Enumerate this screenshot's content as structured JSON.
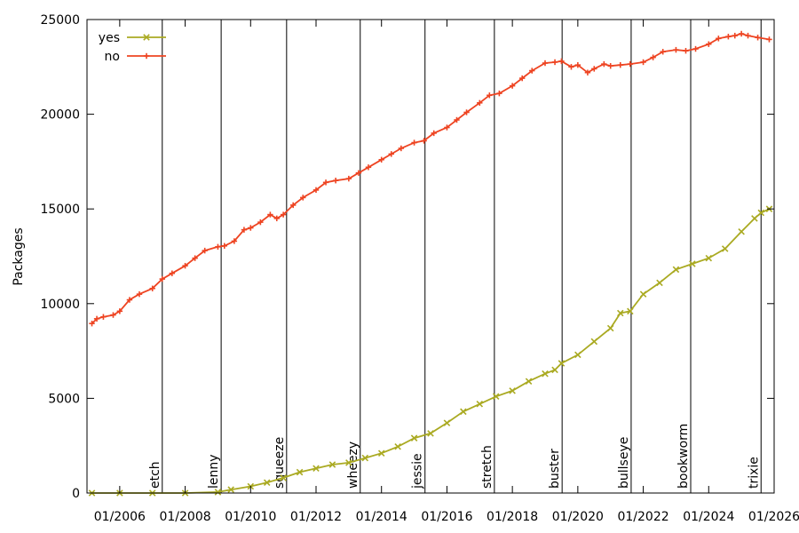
{
  "chart_data": {
    "type": "line",
    "title": "",
    "xlabel": "",
    "ylabel": "Packages",
    "xlim": [
      2005.0,
      2026.0
    ],
    "ylim": [
      0,
      25000
    ],
    "y_ticks": [
      0,
      5000,
      10000,
      15000,
      20000,
      25000
    ],
    "x_ticks": [
      {
        "value": 2006,
        "label": "01/2006"
      },
      {
        "value": 2008,
        "label": "01/2008"
      },
      {
        "value": 2010,
        "label": "01/2010"
      },
      {
        "value": 2012,
        "label": "01/2012"
      },
      {
        "value": 2014,
        "label": "01/2014"
      },
      {
        "value": 2016,
        "label": "01/2016"
      },
      {
        "value": 2018,
        "label": "01/2018"
      },
      {
        "value": 2020,
        "label": "01/2020"
      },
      {
        "value": 2022,
        "label": "01/2022"
      },
      {
        "value": 2024,
        "label": "01/2024"
      },
      {
        "value": 2026,
        "label": "01/2026"
      }
    ],
    "grid": false,
    "legend_position": "top-left",
    "releases": [
      {
        "name": "etch",
        "x": 2007.3
      },
      {
        "name": "lenny",
        "x": 2009.1
      },
      {
        "name": "squeeze",
        "x": 2011.1
      },
      {
        "name": "wheezy",
        "x": 2013.35
      },
      {
        "name": "jessie",
        "x": 2015.33
      },
      {
        "name": "stretch",
        "x": 2017.45
      },
      {
        "name": "buster",
        "x": 2019.52
      },
      {
        "name": "bullseye",
        "x": 2021.63
      },
      {
        "name": "bookworm",
        "x": 2023.45
      },
      {
        "name": "trixie",
        "x": 2025.6
      }
    ],
    "series": [
      {
        "name": "yes",
        "color": "#aaaa22",
        "marker": "x",
        "x": [
          2005.15,
          2006.0,
          2007.0,
          2008.0,
          2009.0,
          2009.4,
          2010.0,
          2010.5,
          2011.0,
          2011.5,
          2012.0,
          2012.5,
          2013.0,
          2013.5,
          2014.0,
          2014.5,
          2015.0,
          2015.5,
          2016.0,
          2016.5,
          2017.0,
          2017.5,
          2018.0,
          2018.5,
          2019.0,
          2019.3,
          2019.5,
          2020.0,
          2020.5,
          2021.0,
          2021.3,
          2021.6,
          2022.0,
          2022.5,
          2023.0,
          2023.5,
          2024.0,
          2024.5,
          2025.0,
          2025.4,
          2025.6,
          2025.85
        ],
        "y": [
          0,
          0,
          0,
          0,
          50,
          180,
          350,
          550,
          800,
          1100,
          1300,
          1500,
          1600,
          1850,
          2100,
          2450,
          2900,
          3150,
          3700,
          4300,
          4700,
          5100,
          5400,
          5900,
          6300,
          6500,
          6850,
          7300,
          8000,
          8700,
          9500,
          9600,
          10500,
          11100,
          11800,
          12100,
          12400,
          12900,
          13800,
          14500,
          14800,
          15000
        ]
      },
      {
        "name": "no",
        "color": "#ee4422",
        "marker": "+",
        "x": [
          2005.15,
          2005.3,
          2005.5,
          2005.8,
          2006.0,
          2006.3,
          2006.6,
          2007.0,
          2007.3,
          2007.6,
          2008.0,
          2008.3,
          2008.6,
          2009.0,
          2009.2,
          2009.5,
          2009.8,
          2010.0,
          2010.3,
          2010.6,
          2010.8,
          2011.0,
          2011.3,
          2011.6,
          2012.0,
          2012.3,
          2012.6,
          2013.0,
          2013.3,
          2013.6,
          2014.0,
          2014.3,
          2014.6,
          2015.0,
          2015.3,
          2015.6,
          2016.0,
          2016.3,
          2016.6,
          2017.0,
          2017.3,
          2017.6,
          2018.0,
          2018.3,
          2018.6,
          2019.0,
          2019.3,
          2019.5,
          2019.8,
          2020.0,
          2020.3,
          2020.5,
          2020.8,
          2021.0,
          2021.3,
          2021.6,
          2022.0,
          2022.3,
          2022.6,
          2023.0,
          2023.3,
          2023.6,
          2024.0,
          2024.3,
          2024.6,
          2024.8,
          2025.0,
          2025.2,
          2025.5,
          2025.85
        ],
        "y": [
          8950,
          9200,
          9300,
          9400,
          9600,
          10200,
          10500,
          10800,
          11300,
          11600,
          12000,
          12400,
          12800,
          13000,
          13050,
          13300,
          13900,
          14000,
          14300,
          14700,
          14500,
          14700,
          15200,
          15600,
          16000,
          16400,
          16500,
          16600,
          16900,
          17200,
          17600,
          17900,
          18200,
          18500,
          18600,
          19000,
          19300,
          19700,
          20100,
          20600,
          21000,
          21100,
          21500,
          21900,
          22300,
          22700,
          22750,
          22800,
          22500,
          22600,
          22200,
          22400,
          22650,
          22550,
          22600,
          22650,
          22750,
          23000,
          23300,
          23400,
          23350,
          23450,
          23700,
          24000,
          24100,
          24150,
          24250,
          24150,
          24050,
          23950
        ]
      }
    ]
  }
}
